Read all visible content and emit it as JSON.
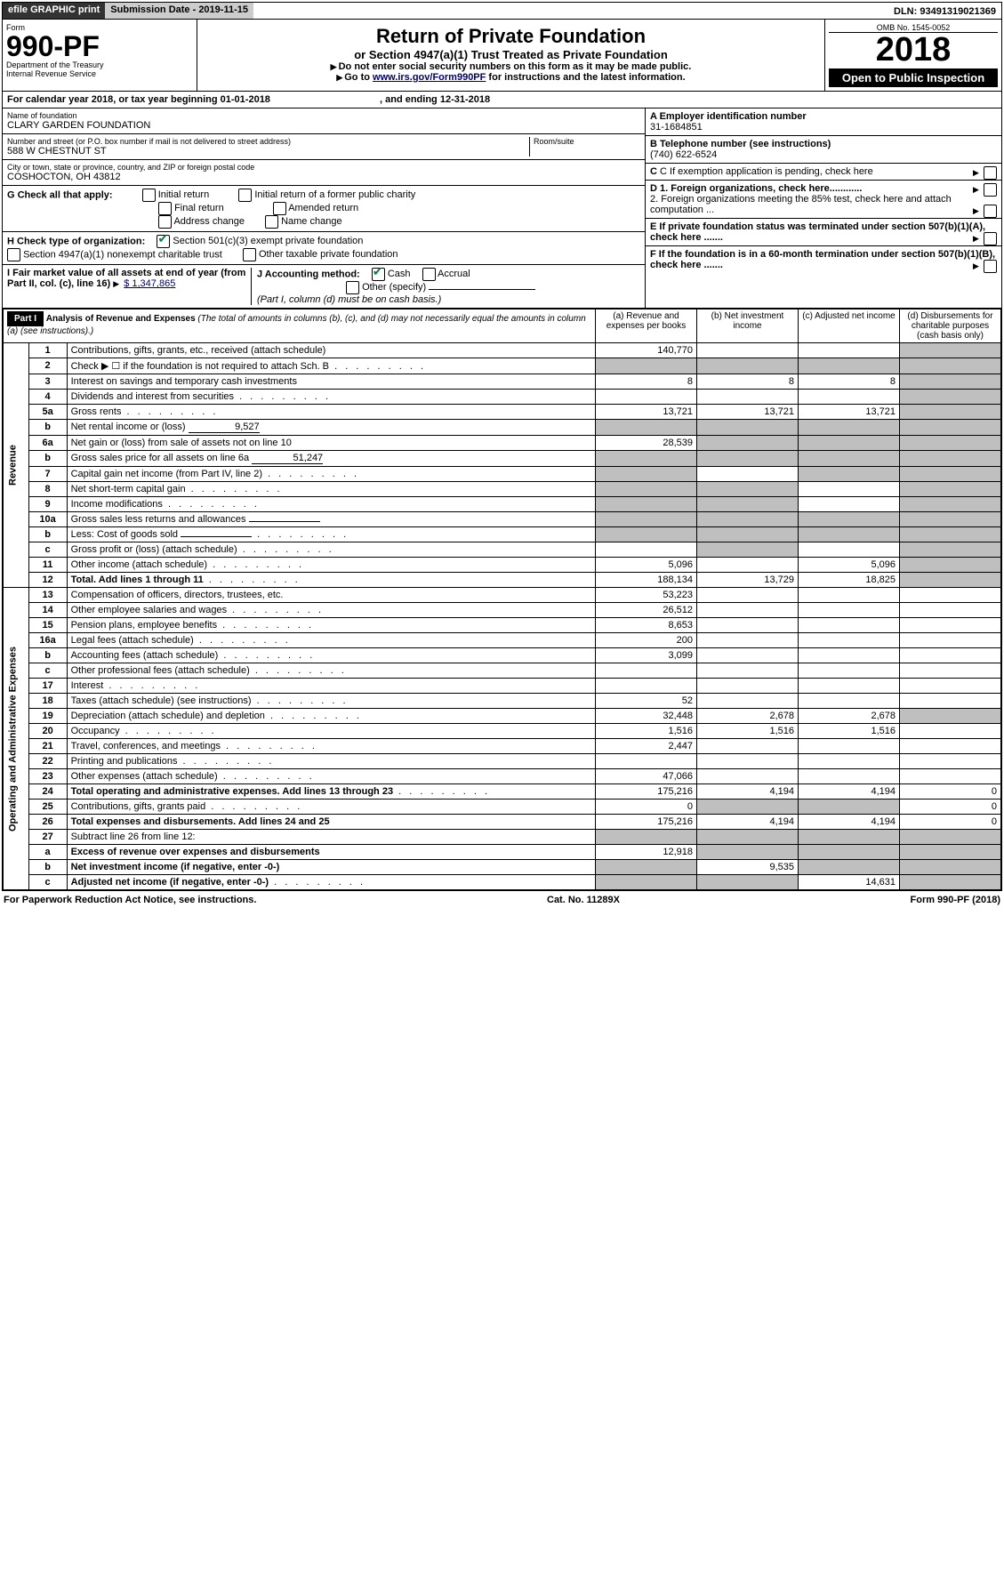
{
  "topbar": {
    "efile": "efile GRAPHIC print",
    "submission_label": "Submission Date - 2019-11-15",
    "dln_label": "DLN: 93491319021369"
  },
  "header": {
    "form_word": "Form",
    "form_number": "990-PF",
    "dept": "Department of the Treasury",
    "irs": "Internal Revenue Service",
    "title": "Return of Private Foundation",
    "subtitle": "or Section 4947(a)(1) Trust Treated as Private Foundation",
    "note1": "Do not enter social security numbers on this form as it may be made public.",
    "note2_pre": "Go to ",
    "note2_link": "www.irs.gov/Form990PF",
    "note2_post": " for instructions and the latest information.",
    "omb": "OMB No. 1545-0052",
    "year": "2018",
    "open_public": "Open to Public Inspection"
  },
  "cal_year": {
    "label_pre": "For calendar year 2018, or tax year beginning ",
    "begin": "01-01-2018",
    "label_mid": ", and ending ",
    "end": "12-31-2018"
  },
  "entity": {
    "name_label": "Name of foundation",
    "name": "CLARY GARDEN FOUNDATION",
    "addr_label": "Number and street (or P.O. box number if mail is not delivered to street address)",
    "room_label": "Room/suite",
    "addr": "588 W CHESTNUT ST",
    "city_label": "City or town, state or province, country, and ZIP or foreign postal code",
    "city": "COSHOCTON, OH  43812",
    "ein_label": "A Employer identification number",
    "ein": "31-1684851",
    "tel_label": "B Telephone number (see instructions)",
    "tel": "(740) 622-6524",
    "c_label": "C If exemption application is pending, check here",
    "d1": "D 1. Foreign organizations, check here............",
    "d2": "2. Foreign organizations meeting the 85% test, check here and attach computation ...",
    "e": "E  If private foundation status was terminated under section 507(b)(1)(A), check here .......",
    "f": "F  If the foundation is in a 60-month termination under section 507(b)(1)(B), check here ......."
  },
  "g": {
    "label": "G Check all that apply:",
    "opts": [
      "Initial return",
      "Initial return of a former public charity",
      "Final return",
      "Amended return",
      "Address change",
      "Name change"
    ]
  },
  "h": {
    "label": "H Check type of organization:",
    "opt1": "Section 501(c)(3) exempt private foundation",
    "opt2": "Section 4947(a)(1) nonexempt charitable trust",
    "opt3": "Other taxable private foundation"
  },
  "i": {
    "label": "I Fair market value of all assets at end of year (from Part II, col. (c), line 16)",
    "value": "$  1,347,865"
  },
  "j": {
    "label": "J Accounting method:",
    "cash": "Cash",
    "accrual": "Accrual",
    "other": "Other (specify)",
    "note": "(Part I, column (d) must be on cash basis.)"
  },
  "part1": {
    "label": "Part I",
    "title": "Analysis of Revenue and Expenses",
    "title_note": " (The total of amounts in columns (b), (c), and (d) may not necessarily equal the amounts in column (a) (see instructions).)",
    "col_a": "(a)    Revenue and expenses per books",
    "col_b": "(b)   Net investment income",
    "col_c": "(c)   Adjusted net income",
    "col_d": "(d)   Disbursements for charitable purposes (cash basis only)",
    "revenue_label": "Revenue",
    "expenses_label": "Operating and Administrative Expenses"
  },
  "rows": [
    {
      "n": "1",
      "desc": "Contributions, gifts, grants, etc., received (attach schedule)",
      "a": "140,770",
      "b": "",
      "c": "",
      "d": "",
      "d_gray": true
    },
    {
      "n": "2",
      "desc": "Check ▶ ☐ if the foundation is not required to attach Sch. B",
      "dots": true,
      "a_gray": true,
      "b_gray": true,
      "c_gray": true,
      "d_gray": true
    },
    {
      "n": "3",
      "desc": "Interest on savings and temporary cash investments",
      "a": "8",
      "b": "8",
      "c": "8",
      "d_gray": true
    },
    {
      "n": "4",
      "desc": "Dividends and interest from securities",
      "dots": true,
      "a": "",
      "b": "",
      "c": "",
      "d_gray": true
    },
    {
      "n": "5a",
      "desc": "Gross rents",
      "dots": true,
      "a": "13,721",
      "b": "13,721",
      "c": "13,721",
      "d_gray": true
    },
    {
      "n": "b",
      "desc": "Net rental income or (loss)",
      "inline": "9,527",
      "a_gray": true,
      "b_gray": true,
      "c_gray": true,
      "d_gray": true
    },
    {
      "n": "6a",
      "desc": "Net gain or (loss) from sale of assets not on line 10",
      "a": "28,539",
      "b_gray": true,
      "c_gray": true,
      "d_gray": true
    },
    {
      "n": "b",
      "desc": "Gross sales price for all assets on line 6a",
      "inline": "51,247",
      "a_gray": true,
      "b_gray": true,
      "c_gray": true,
      "d_gray": true
    },
    {
      "n": "7",
      "desc": "Capital gain net income (from Part IV, line 2)",
      "dots": true,
      "a_gray": true,
      "b": "",
      "c_gray": true,
      "d_gray": true
    },
    {
      "n": "8",
      "desc": "Net short-term capital gain",
      "dots": true,
      "a_gray": true,
      "b_gray": true,
      "c": "",
      "d_gray": true
    },
    {
      "n": "9",
      "desc": "Income modifications",
      "dots": true,
      "a_gray": true,
      "b_gray": true,
      "c": "",
      "d_gray": true
    },
    {
      "n": "10a",
      "desc": "Gross sales less returns and allowances",
      "inline": "",
      "a_gray": true,
      "b_gray": true,
      "c_gray": true,
      "d_gray": true
    },
    {
      "n": "b",
      "desc": "Less: Cost of goods sold",
      "dots": true,
      "inline": "",
      "a_gray": true,
      "b_gray": true,
      "c_gray": true,
      "d_gray": true
    },
    {
      "n": "c",
      "desc": "Gross profit or (loss) (attach schedule)",
      "dots": true,
      "a": "",
      "b_gray": true,
      "c": "",
      "d_gray": true
    },
    {
      "n": "11",
      "desc": "Other income (attach schedule)",
      "dots": true,
      "a": "5,096",
      "b": "",
      "c": "5,096",
      "d_gray": true
    },
    {
      "n": "12",
      "desc": "Total. Add lines 1 through 11",
      "dots": true,
      "bold": true,
      "a": "188,134",
      "b": "13,729",
      "c": "18,825",
      "d_gray": true
    },
    {
      "n": "13",
      "desc": "Compensation of officers, directors, trustees, etc.",
      "a": "53,223",
      "b": "",
      "c": "",
      "d": ""
    },
    {
      "n": "14",
      "desc": "Other employee salaries and wages",
      "dots": true,
      "a": "26,512",
      "b": "",
      "c": "",
      "d": ""
    },
    {
      "n": "15",
      "desc": "Pension plans, employee benefits",
      "dots": true,
      "a": "8,653",
      "b": "",
      "c": "",
      "d": ""
    },
    {
      "n": "16a",
      "desc": "Legal fees (attach schedule)",
      "dots": true,
      "a": "200",
      "b": "",
      "c": "",
      "d": ""
    },
    {
      "n": "b",
      "desc": "Accounting fees (attach schedule)",
      "dots": true,
      "a": "3,099",
      "b": "",
      "c": "",
      "d": ""
    },
    {
      "n": "c",
      "desc": "Other professional fees (attach schedule)",
      "dots": true,
      "a": "",
      "b": "",
      "c": "",
      "d": ""
    },
    {
      "n": "17",
      "desc": "Interest",
      "dots": true,
      "a": "",
      "b": "",
      "c": "",
      "d": ""
    },
    {
      "n": "18",
      "desc": "Taxes (attach schedule) (see instructions)",
      "dots": true,
      "a": "52",
      "b": "",
      "c": "",
      "d": ""
    },
    {
      "n": "19",
      "desc": "Depreciation (attach schedule) and depletion",
      "dots": true,
      "a": "32,448",
      "b": "2,678",
      "c": "2,678",
      "d_gray": true
    },
    {
      "n": "20",
      "desc": "Occupancy",
      "dots": true,
      "a": "1,516",
      "b": "1,516",
      "c": "1,516",
      "d": ""
    },
    {
      "n": "21",
      "desc": "Travel, conferences, and meetings",
      "dots": true,
      "a": "2,447",
      "b": "",
      "c": "",
      "d": ""
    },
    {
      "n": "22",
      "desc": "Printing and publications",
      "dots": true,
      "a": "",
      "b": "",
      "c": "",
      "d": ""
    },
    {
      "n": "23",
      "desc": "Other expenses (attach schedule)",
      "dots": true,
      "a": "47,066",
      "b": "",
      "c": "",
      "d": ""
    },
    {
      "n": "24",
      "desc": "Total operating and administrative expenses. Add lines 13 through 23",
      "dots": true,
      "bold": true,
      "a": "175,216",
      "b": "4,194",
      "c": "4,194",
      "d": "0"
    },
    {
      "n": "25",
      "desc": "Contributions, gifts, grants paid",
      "dots": true,
      "a": "0",
      "b_gray": true,
      "c_gray": true,
      "d": "0"
    },
    {
      "n": "26",
      "desc": "Total expenses and disbursements. Add lines 24 and 25",
      "bold": true,
      "a": "175,216",
      "b": "4,194",
      "c": "4,194",
      "d": "0"
    },
    {
      "n": "27",
      "desc": "Subtract line 26 from line 12:",
      "a_gray": true,
      "b_gray": true,
      "c_gray": true,
      "d_gray": true
    },
    {
      "n": "a",
      "desc": "Excess of revenue over expenses and disbursements",
      "bold": true,
      "a": "12,918",
      "b_gray": true,
      "c_gray": true,
      "d_gray": true
    },
    {
      "n": "b",
      "desc": "Net investment income (if negative, enter -0-)",
      "bold": true,
      "a_gray": true,
      "b": "9,535",
      "c_gray": true,
      "d_gray": true
    },
    {
      "n": "c",
      "desc": "Adjusted net income (if negative, enter -0-)",
      "dots": true,
      "bold": true,
      "a_gray": true,
      "b_gray": true,
      "c": "14,631",
      "d_gray": true
    }
  ],
  "footer": {
    "left": "For Paperwork Reduction Act Notice, see instructions.",
    "mid": "Cat. No. 11289X",
    "right": "Form 990-PF (2018)"
  }
}
